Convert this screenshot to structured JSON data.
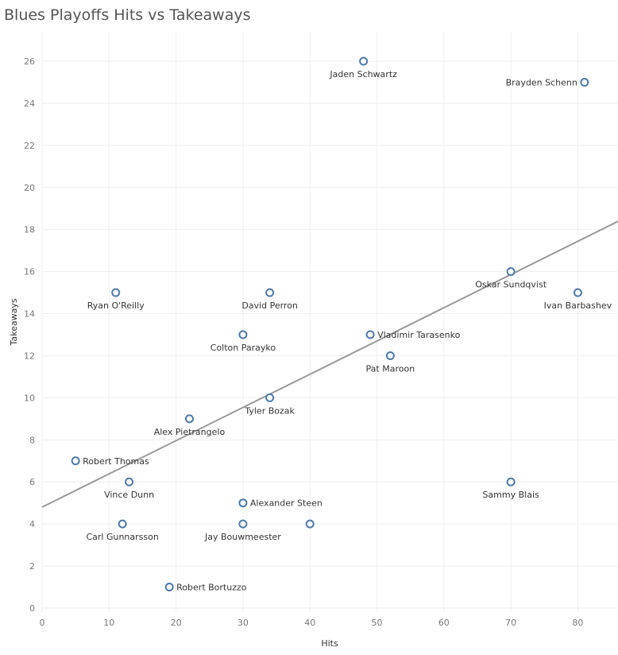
{
  "chart_data": {
    "type": "scatter",
    "title": "Blues Playoffs Hits vs Takeaways",
    "xlabel": "Hits",
    "ylabel": "Takeaways",
    "xlim": [
      0,
      86
    ],
    "ylim": [
      0,
      27.4
    ],
    "xticks": [
      "0",
      "10",
      "20",
      "30",
      "40",
      "50",
      "60",
      "70",
      "80"
    ],
    "yticks": [
      "0",
      "2",
      "4",
      "6",
      "8",
      "10",
      "12",
      "14",
      "16",
      "18",
      "20",
      "22",
      "24",
      "26"
    ],
    "grid": true,
    "colors": {
      "point": "#4e79a7",
      "trend": "#999999",
      "grid": "#eeeeee"
    },
    "trendline": {
      "intercept": 4.8,
      "slope": 0.158
    },
    "points": [
      {
        "name": "Jaden Schwartz",
        "x": 48,
        "y": 26,
        "label_pos": "below"
      },
      {
        "name": "Brayden Schenn",
        "x": 81,
        "y": 25,
        "label_pos": "left"
      },
      {
        "name": "Oskar Sundqvist",
        "x": 70,
        "y": 16,
        "label_pos": "below"
      },
      {
        "name": "Ivan Barbashev",
        "x": 80,
        "y": 15,
        "label_pos": "below"
      },
      {
        "name": "Ryan O'Reilly",
        "x": 11,
        "y": 15,
        "label_pos": "below"
      },
      {
        "name": "David Perron",
        "x": 34,
        "y": 15,
        "label_pos": "below"
      },
      {
        "name": "Colton Parayko",
        "x": 30,
        "y": 13,
        "label_pos": "below"
      },
      {
        "name": "Vladimir Tarasenko",
        "x": 49,
        "y": 13,
        "label_pos": "right"
      },
      {
        "name": "Pat Maroon",
        "x": 52,
        "y": 12,
        "label_pos": "below"
      },
      {
        "name": "Tyler Bozak",
        "x": 34,
        "y": 10,
        "label_pos": "below"
      },
      {
        "name": "Alex Pietrangelo",
        "x": 22,
        "y": 9,
        "label_pos": "below"
      },
      {
        "name": "Robert Thomas",
        "x": 5,
        "y": 7,
        "label_pos": "right"
      },
      {
        "name": "Vince Dunn",
        "x": 13,
        "y": 6,
        "label_pos": "below"
      },
      {
        "name": "Sammy Blais",
        "x": 70,
        "y": 6,
        "label_pos": "below"
      },
      {
        "name": "Alexander Steen",
        "x": 30,
        "y": 5,
        "label_pos": "right"
      },
      {
        "name": "Carl Gunnarsson",
        "x": 12,
        "y": 4,
        "label_pos": "below"
      },
      {
        "name": "Jay Bouwmeester",
        "x": 30,
        "y": 4,
        "label_pos": "below"
      },
      {
        "name": "",
        "x": 40,
        "y": 4,
        "label_pos": "none"
      },
      {
        "name": "Robert Bortuzzo",
        "x": 19,
        "y": 1,
        "label_pos": "right"
      }
    ]
  }
}
